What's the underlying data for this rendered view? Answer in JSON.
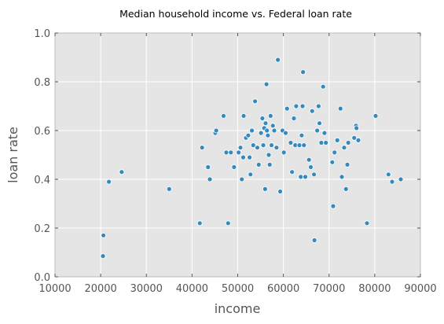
{
  "chart_data": {
    "type": "scatter",
    "title": "Median household income vs. Federal loan rate",
    "xlabel": "income",
    "ylabel": "loan rate",
    "xlim": [
      10000,
      90000
    ],
    "ylim": [
      0.0,
      1.0
    ],
    "xticks": [
      "10000",
      "20000",
      "30000",
      "40000",
      "50000",
      "60000",
      "70000",
      "80000",
      "90000"
    ],
    "yticks": [
      "0.0",
      "0.2",
      "0.4",
      "0.6",
      "0.8",
      "1.0"
    ],
    "grid": true,
    "colors": {
      "point": "#348abd",
      "plot_bg": "#e5e5e5",
      "grid": "#ffffff"
    },
    "points": [
      [
        20500,
        0.085
      ],
      [
        20600,
        0.17
      ],
      [
        21800,
        0.39
      ],
      [
        24600,
        0.43
      ],
      [
        35000,
        0.36
      ],
      [
        41700,
        0.22
      ],
      [
        42200,
        0.53
      ],
      [
        43500,
        0.45
      ],
      [
        43900,
        0.4
      ],
      [
        45100,
        0.59
      ],
      [
        45300,
        0.6
      ],
      [
        46900,
        0.66
      ],
      [
        47500,
        0.51
      ],
      [
        47900,
        0.22
      ],
      [
        48500,
        0.51
      ],
      [
        49200,
        0.45
      ],
      [
        50200,
        0.51
      ],
      [
        50600,
        0.53
      ],
      [
        50900,
        0.4
      ],
      [
        51200,
        0.49
      ],
      [
        51300,
        0.66
      ],
      [
        51800,
        0.57
      ],
      [
        52300,
        0.58
      ],
      [
        52600,
        0.49
      ],
      [
        52800,
        0.42
      ],
      [
        53100,
        0.6
      ],
      [
        53400,
        0.54
      ],
      [
        53800,
        0.72
      ],
      [
        54300,
        0.53
      ],
      [
        54600,
        0.46
      ],
      [
        55100,
        0.59
      ],
      [
        55400,
        0.65
      ],
      [
        55600,
        0.54
      ],
      [
        55800,
        0.61
      ],
      [
        56000,
        0.36
      ],
      [
        56100,
        0.63
      ],
      [
        56300,
        0.79
      ],
      [
        56400,
        0.6
      ],
      [
        56600,
        0.58
      ],
      [
        56800,
        0.5
      ],
      [
        57000,
        0.46
      ],
      [
        57200,
        0.66
      ],
      [
        57400,
        0.54
      ],
      [
        57700,
        0.62
      ],
      [
        58000,
        0.6
      ],
      [
        58500,
        0.53
      ],
      [
        58800,
        0.89
      ],
      [
        59300,
        0.35
      ],
      [
        59800,
        0.6
      ],
      [
        60100,
        0.51
      ],
      [
        60500,
        0.59
      ],
      [
        60800,
        0.69
      ],
      [
        61600,
        0.55
      ],
      [
        61900,
        0.43
      ],
      [
        62300,
        0.65
      ],
      [
        62600,
        0.54
      ],
      [
        62800,
        0.7
      ],
      [
        63500,
        0.54
      ],
      [
        63800,
        0.41
      ],
      [
        64000,
        0.58
      ],
      [
        64200,
        0.7
      ],
      [
        64300,
        0.84
      ],
      [
        64500,
        0.54
      ],
      [
        64800,
        0.41
      ],
      [
        65600,
        0.48
      ],
      [
        66000,
        0.45
      ],
      [
        66300,
        0.68
      ],
      [
        66700,
        0.42
      ],
      [
        66800,
        0.15
      ],
      [
        67400,
        0.6
      ],
      [
        67700,
        0.7
      ],
      [
        67900,
        0.63
      ],
      [
        68300,
        0.55
      ],
      [
        68700,
        0.78
      ],
      [
        69000,
        0.59
      ],
      [
        69300,
        0.55
      ],
      [
        70700,
        0.47
      ],
      [
        70900,
        0.29
      ],
      [
        71200,
        0.51
      ],
      [
        71800,
        0.56
      ],
      [
        72500,
        0.69
      ],
      [
        72800,
        0.41
      ],
      [
        73300,
        0.53
      ],
      [
        73700,
        0.36
      ],
      [
        74000,
        0.46
      ],
      [
        74200,
        0.55
      ],
      [
        75500,
        0.57
      ],
      [
        75900,
        0.62
      ],
      [
        76000,
        0.61
      ],
      [
        76400,
        0.56
      ],
      [
        78300,
        0.22
      ],
      [
        80200,
        0.66
      ],
      [
        83000,
        0.42
      ],
      [
        83800,
        0.39
      ],
      [
        85700,
        0.4
      ]
    ]
  }
}
